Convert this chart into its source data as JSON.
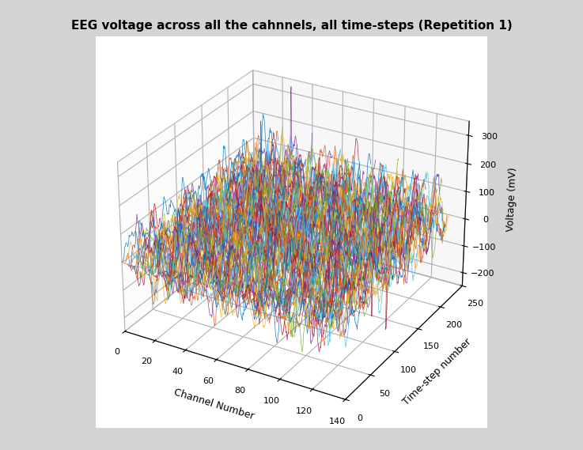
{
  "title": "EEG voltage across all the cahnnels, all time-steps (Repetition 1)",
  "xlabel": "Channel Number",
  "ylabel": "Time-step number",
  "zlabel": "Voltage (mV)",
  "n_channels": 128,
  "n_timesteps": 256,
  "x_ticks": [
    0,
    20,
    40,
    60,
    80,
    100,
    120,
    140
  ],
  "y_ticks": [
    0,
    50,
    100,
    150,
    200,
    250
  ],
  "z_ticks": [
    -200,
    -100,
    0,
    100,
    200,
    300
  ],
  "xlim": [
    0,
    140
  ],
  "ylim": [
    0,
    250
  ],
  "zlim": [
    -250,
    350
  ],
  "background_color": "#d4d4d4",
  "seed": 42,
  "line_colors": [
    "#0072BD",
    "#D95319",
    "#EDB120",
    "#7E2F8E",
    "#77AC30",
    "#4DBEEE",
    "#A2142F"
  ],
  "title_fontsize": 11,
  "label_fontsize": 9,
  "elev": 28,
  "azim": -60
}
